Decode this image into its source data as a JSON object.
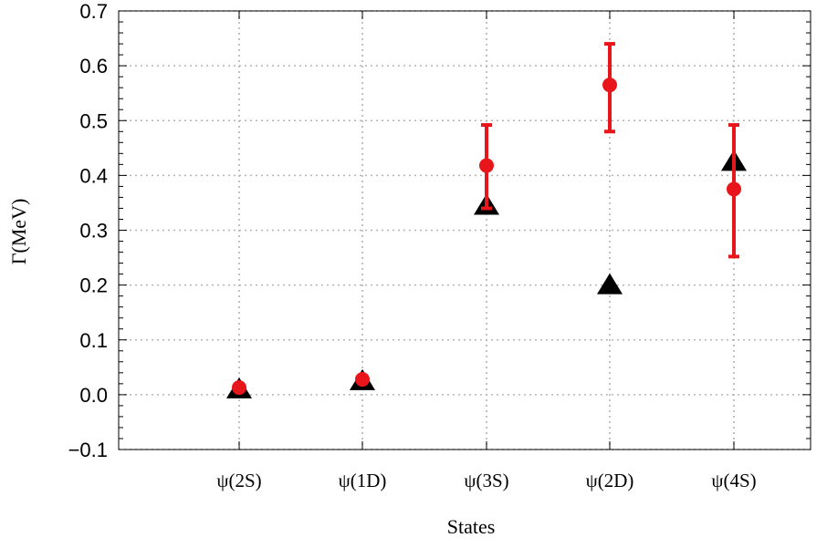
{
  "chart_data": {
    "type": "scatter",
    "xlabel": "States",
    "ylabel": "Γ(MeV)",
    "categories": [
      "ψ(2S)",
      "ψ(1D)",
      "ψ(3S)",
      "ψ(2D)",
      "ψ(4S)"
    ],
    "ylim": [
      -0.1,
      0.7
    ],
    "yticks": [
      "−0.1",
      "0.0",
      "0.1",
      "0.2",
      "0.3",
      "0.4",
      "0.5",
      "0.6",
      "0.7"
    ],
    "grid": true,
    "series": [
      {
        "marker": "triangle",
        "color": "#000000",
        "values": [
          0.01,
          0.025,
          0.345,
          0.2,
          0.425
        ]
      },
      {
        "marker": "circle",
        "color": "#e8161a",
        "values": [
          0.013,
          0.028,
          0.418,
          0.565,
          0.375
        ],
        "err_low": [
          0.013,
          0.028,
          0.34,
          0.48,
          0.252
        ],
        "err_high": [
          0.013,
          0.028,
          0.492,
          0.64,
          0.492
        ]
      }
    ]
  }
}
